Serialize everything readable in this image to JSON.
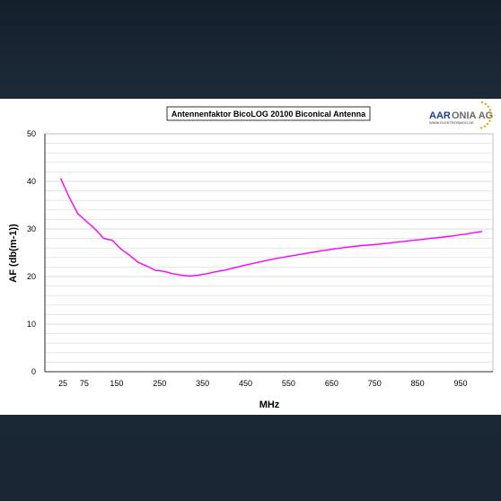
{
  "logo": {
    "brand_left": "AAR",
    "brand_right": "ONIA AG",
    "sub": "WWW.ELEKTROSMOG.DE",
    "colors": {
      "left": "#1f3a8a",
      "right": "#6a6a6a",
      "stars": "#d6a800"
    }
  },
  "chart_data": {
    "type": "line",
    "title": "Antennenfaktor BicoLOG 20100 Biconical Antenna",
    "xlabel": "MHz",
    "ylabel": "AF (db(m-1))",
    "ylim": [
      0,
      50
    ],
    "xlim": [
      0,
      1000
    ],
    "x_ticks": [
      "25",
      "75",
      "150",
      "250",
      "350",
      "450",
      "550",
      "650",
      "750",
      "850",
      "950"
    ],
    "y_ticks": [
      "0",
      "10",
      "20",
      "30",
      "40",
      "50"
    ],
    "grid": true,
    "line_color": "#ff00ff",
    "series": [
      {
        "x": [
          20,
          40,
          60,
          80,
          100,
          120,
          140,
          160,
          180,
          200,
          220,
          240,
          260,
          280,
          300,
          320,
          340,
          360,
          380,
          400,
          440,
          480,
          520,
          560,
          600,
          640,
          680,
          720,
          760,
          800,
          840,
          880,
          920,
          960,
          1000
        ],
        "values": [
          40.6,
          36.6,
          33.2,
          31.6,
          30.0,
          28.0,
          27.6,
          25.8,
          24.5,
          23.0,
          22.2,
          21.3,
          21.1,
          20.6,
          20.3,
          20.1,
          20.3,
          20.6,
          21.0,
          21.3,
          22.2,
          23.0,
          23.8,
          24.4,
          25.0,
          25.6,
          26.1,
          26.5,
          26.8,
          27.2,
          27.6,
          28.0,
          28.4,
          28.9,
          29.5
        ]
      }
    ]
  }
}
